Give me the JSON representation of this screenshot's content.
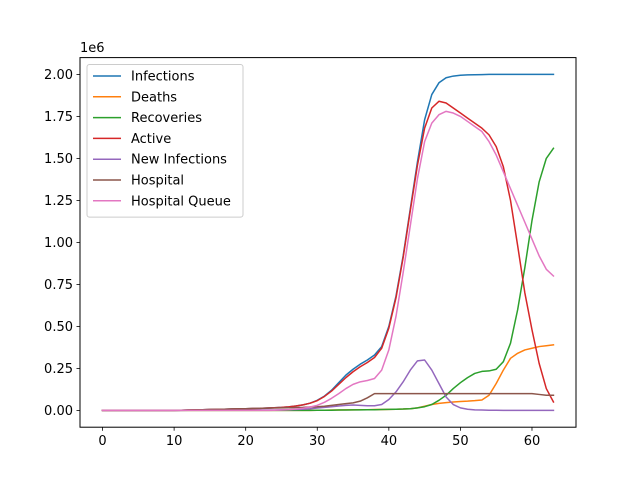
{
  "chart_data": {
    "type": "line",
    "title": "",
    "xlabel": "",
    "ylabel": "",
    "y_offset_label": "1e6",
    "xlim": [
      -3.15,
      66.15
    ],
    "ylim": [
      -0.1,
      2.1
    ],
    "x_ticks": [
      0,
      10,
      20,
      30,
      40,
      50,
      60
    ],
    "x_tick_labels": [
      "0",
      "10",
      "20",
      "30",
      "40",
      "50",
      "60"
    ],
    "y_ticks": [
      0.0,
      0.25,
      0.5,
      0.75,
      1.0,
      1.25,
      1.5,
      1.75,
      2.0
    ],
    "y_tick_labels": [
      "0.00",
      "0.25",
      "0.50",
      "0.75",
      "1.00",
      "1.25",
      "1.50",
      "1.75",
      "2.00"
    ],
    "y_unit_multiplier": 1000000,
    "grid": false,
    "legend_position": "top-left",
    "x": [
      0,
      1,
      2,
      3,
      4,
      5,
      6,
      7,
      8,
      9,
      10,
      11,
      12,
      13,
      14,
      15,
      16,
      17,
      18,
      19,
      20,
      21,
      22,
      23,
      24,
      25,
      26,
      27,
      28,
      29,
      30,
      31,
      32,
      33,
      34,
      35,
      36,
      37,
      38,
      39,
      40,
      41,
      42,
      43,
      44,
      45,
      46,
      47,
      48,
      49,
      50,
      51,
      52,
      53,
      54,
      55,
      56,
      57,
      58,
      59,
      60,
      61,
      62,
      63
    ],
    "series": [
      {
        "name": "Infections",
        "color": "#1f77b4",
        "values": [
          0,
          0,
          0,
          0,
          0,
          0,
          0,
          0,
          0,
          0,
          0,
          0.001,
          0.002,
          0.003,
          0.004,
          0.005,
          0.006,
          0.007,
          0.008,
          0.009,
          0.01,
          0.011,
          0.012,
          0.014,
          0.016,
          0.018,
          0.021,
          0.026,
          0.033,
          0.043,
          0.06,
          0.085,
          0.12,
          0.165,
          0.21,
          0.245,
          0.275,
          0.3,
          0.33,
          0.38,
          0.5,
          0.68,
          0.92,
          1.2,
          1.48,
          1.73,
          1.88,
          1.95,
          1.98,
          1.99,
          1.995,
          1.997,
          1.998,
          1.999,
          2.0,
          2.0,
          2.0,
          2.0,
          2.0,
          2.0,
          2.0,
          2.0,
          2.0,
          2.0
        ]
      },
      {
        "name": "Deaths",
        "color": "#ff7f0e",
        "values": [
          0,
          0,
          0,
          0,
          0,
          0,
          0,
          0,
          0,
          0,
          0,
          0,
          0,
          0,
          0,
          0,
          0,
          0,
          0,
          0,
          0,
          0,
          0,
          0,
          0,
          0,
          0,
          0,
          0,
          0,
          0.001,
          0.001,
          0.002,
          0.002,
          0.003,
          0.003,
          0.004,
          0.004,
          0.005,
          0.005,
          0.006,
          0.007,
          0.008,
          0.01,
          0.015,
          0.025,
          0.035,
          0.042,
          0.046,
          0.05,
          0.053,
          0.055,
          0.058,
          0.062,
          0.09,
          0.16,
          0.24,
          0.31,
          0.34,
          0.36,
          0.37,
          0.38,
          0.385,
          0.39
        ]
      },
      {
        "name": "Recoveries",
        "color": "#2ca02c",
        "values": [
          0,
          0,
          0,
          0,
          0,
          0,
          0,
          0,
          0,
          0,
          0,
          0,
          0,
          0,
          0,
          0,
          0,
          0,
          0,
          0,
          0,
          0,
          0,
          0,
          0,
          0,
          0,
          0,
          0,
          0,
          0.001,
          0.001,
          0.001,
          0.002,
          0.002,
          0.003,
          0.003,
          0.004,
          0.004,
          0.005,
          0.006,
          0.007,
          0.008,
          0.01,
          0.015,
          0.022,
          0.035,
          0.06,
          0.09,
          0.13,
          0.165,
          0.195,
          0.22,
          0.232,
          0.235,
          0.245,
          0.29,
          0.4,
          0.6,
          0.85,
          1.13,
          1.36,
          1.5,
          1.56
        ]
      },
      {
        "name": "Active",
        "color": "#d62728",
        "values": [
          0,
          0,
          0,
          0,
          0,
          0,
          0,
          0,
          0,
          0,
          0,
          0.001,
          0.002,
          0.003,
          0.004,
          0.005,
          0.006,
          0.007,
          0.008,
          0.009,
          0.01,
          0.011,
          0.012,
          0.014,
          0.016,
          0.018,
          0.021,
          0.026,
          0.033,
          0.043,
          0.058,
          0.083,
          0.115,
          0.155,
          0.195,
          0.23,
          0.26,
          0.285,
          0.315,
          0.37,
          0.49,
          0.67,
          0.91,
          1.19,
          1.46,
          1.68,
          1.8,
          1.84,
          1.83,
          1.8,
          1.77,
          1.74,
          1.71,
          1.68,
          1.64,
          1.57,
          1.45,
          1.25,
          0.98,
          0.7,
          0.48,
          0.28,
          0.13,
          0.05
        ]
      },
      {
        "name": "New Infections",
        "color": "#9467bd",
        "values": [
          0,
          0,
          0,
          0,
          0,
          0,
          0,
          0,
          0,
          0,
          0,
          0,
          0.001,
          0.001,
          0.001,
          0.001,
          0.001,
          0.001,
          0.001,
          0.001,
          0.001,
          0.001,
          0.002,
          0.002,
          0.002,
          0.003,
          0.004,
          0.005,
          0.007,
          0.01,
          0.014,
          0.018,
          0.022,
          0.026,
          0.03,
          0.032,
          0.03,
          0.028,
          0.028,
          0.035,
          0.065,
          0.11,
          0.17,
          0.24,
          0.295,
          0.3,
          0.24,
          0.16,
          0.08,
          0.035,
          0.015,
          0.007,
          0.003,
          0.002,
          0.001,
          0.001,
          0,
          0,
          0,
          0,
          0,
          0,
          0,
          0
        ]
      },
      {
        "name": "Hospital",
        "color": "#8c564b",
        "values": [
          0,
          0,
          0,
          0,
          0,
          0,
          0,
          0,
          0,
          0,
          0,
          0.001,
          0.002,
          0.003,
          0.004,
          0.005,
          0.006,
          0.007,
          0.008,
          0.009,
          0.01,
          0.011,
          0.012,
          0.013,
          0.014,
          0.015,
          0.016,
          0.017,
          0.018,
          0.02,
          0.022,
          0.025,
          0.03,
          0.035,
          0.04,
          0.045,
          0.055,
          0.075,
          0.1,
          0.1,
          0.1,
          0.1,
          0.1,
          0.1,
          0.1,
          0.1,
          0.1,
          0.1,
          0.1,
          0.1,
          0.1,
          0.1,
          0.1,
          0.1,
          0.1,
          0.1,
          0.1,
          0.1,
          0.1,
          0.1,
          0.1,
          0.095,
          0.09,
          0.09
        ]
      },
      {
        "name": "Hospital Queue",
        "color": "#e377c2",
        "values": [
          0,
          0,
          0,
          0,
          0,
          0,
          0,
          0,
          0,
          0,
          0,
          0,
          0,
          0,
          0,
          0,
          0,
          0,
          0,
          0,
          0,
          0,
          0,
          0,
          0.001,
          0.002,
          0.004,
          0.008,
          0.013,
          0.02,
          0.03,
          0.048,
          0.072,
          0.1,
          0.13,
          0.155,
          0.17,
          0.178,
          0.19,
          0.24,
          0.36,
          0.56,
          0.82,
          1.1,
          1.38,
          1.6,
          1.71,
          1.76,
          1.78,
          1.77,
          1.75,
          1.72,
          1.69,
          1.66,
          1.6,
          1.52,
          1.42,
          1.32,
          1.22,
          1.12,
          1.02,
          0.92,
          0.84,
          0.8
        ]
      }
    ]
  }
}
